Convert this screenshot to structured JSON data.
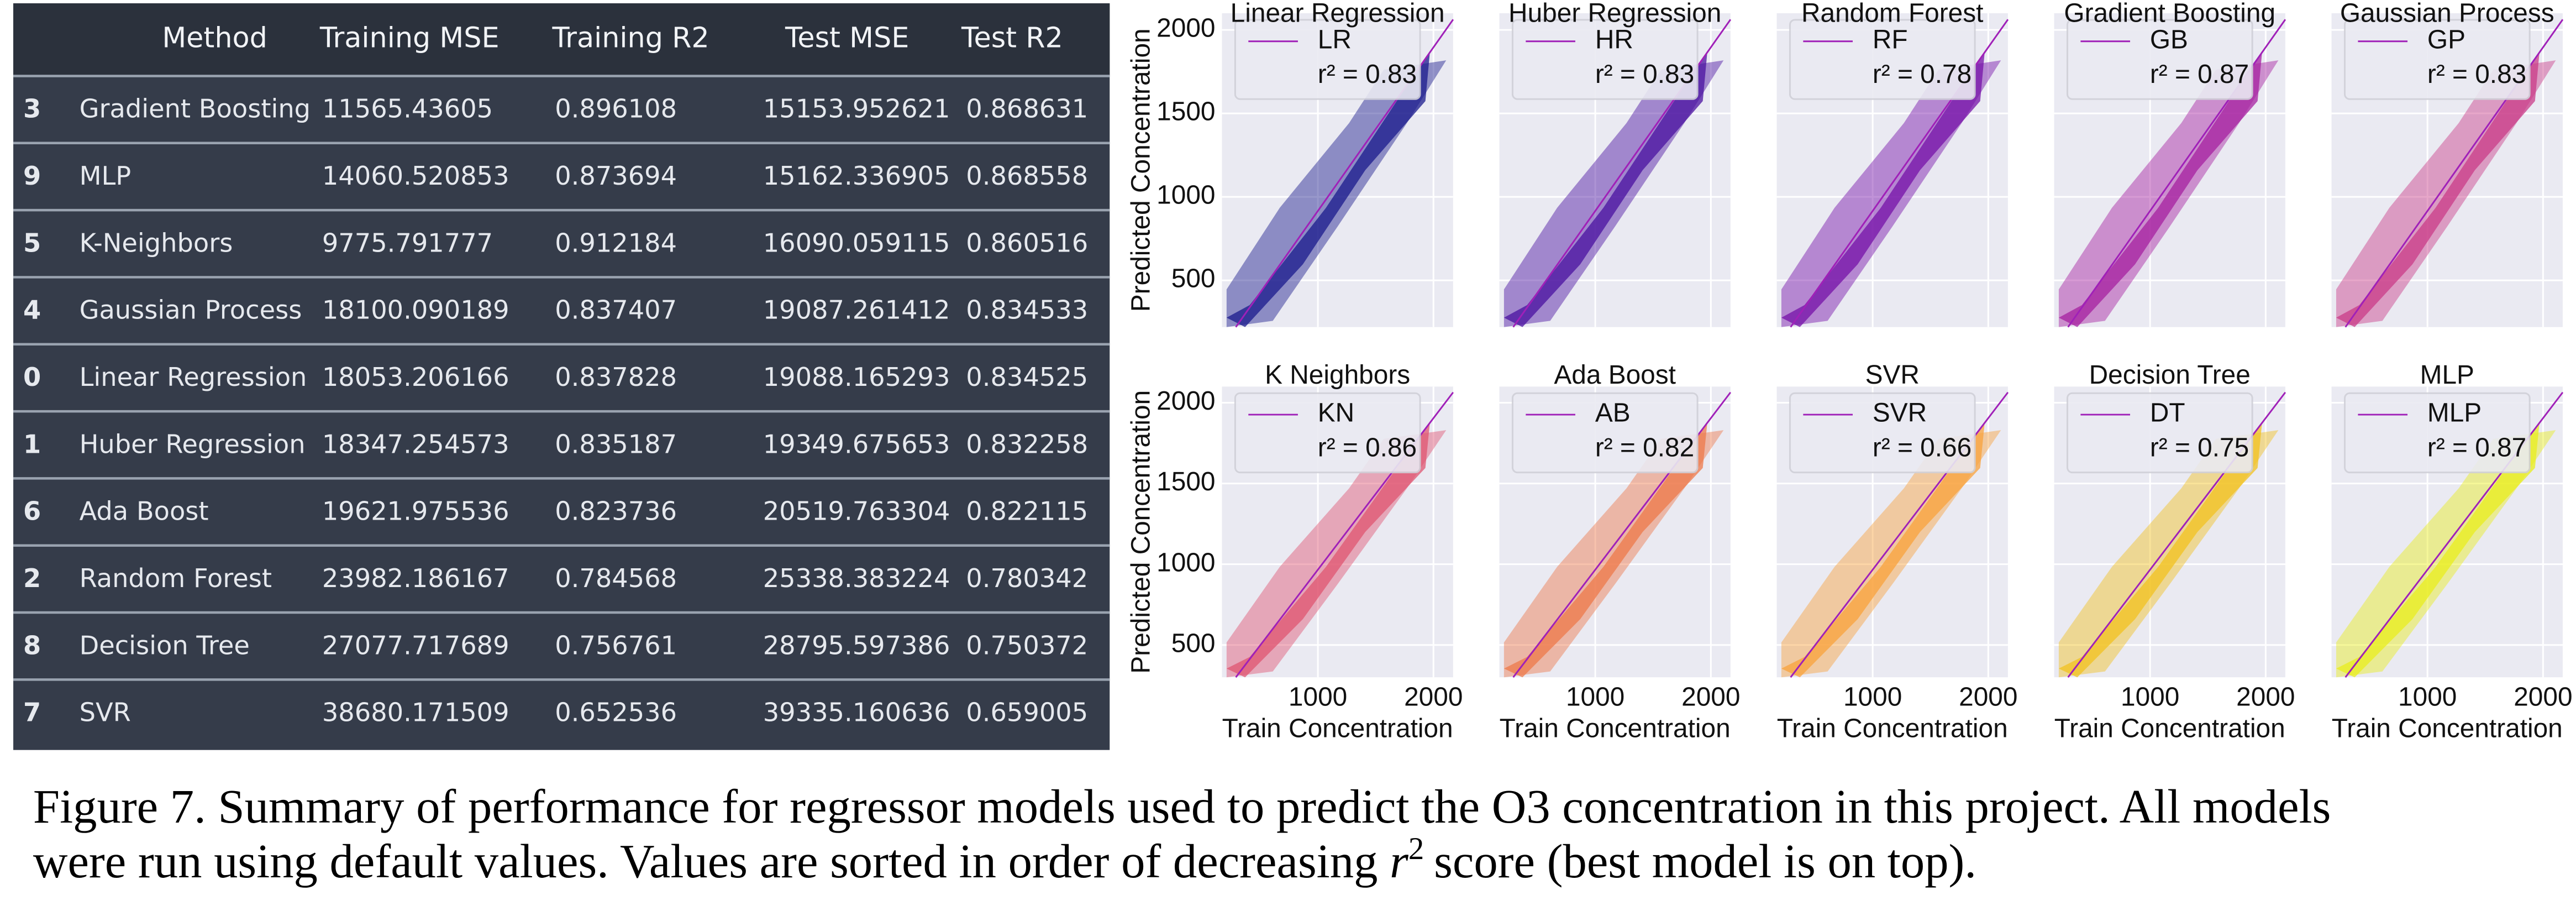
{
  "table": {
    "columns": [
      "Method",
      "Training MSE",
      "Training R2",
      "Test MSE",
      "Test R2"
    ],
    "rows": [
      [
        "3",
        "Gradient Boosting",
        "11565.43605",
        "0.896108",
        "15153.952621",
        "0.868631"
      ],
      [
        "9",
        "MLP",
        "14060.520853",
        "0.873694",
        "15162.336905",
        "0.868558"
      ],
      [
        "5",
        "K-Neighbors",
        "9775.791777",
        "0.912184",
        "16090.059115",
        "0.860516"
      ],
      [
        "4",
        "Gaussian Process",
        "18100.090189",
        "0.837407",
        "19087.261412",
        "0.834533"
      ],
      [
        "0",
        "Linear Regression",
        "18053.206166",
        "0.837828",
        "19088.165293",
        "0.834525"
      ],
      [
        "1",
        "Huber Regression",
        "18347.254573",
        "0.835187",
        "19349.675653",
        "0.832258"
      ],
      [
        "6",
        "Ada Boost",
        "19621.975536",
        "0.823736",
        "20519.763304",
        "0.822115"
      ],
      [
        "2",
        "Random Forest",
        "23982.186167",
        "0.784568",
        "25338.383224",
        "0.780342"
      ],
      [
        "8",
        "Decision Tree",
        "27077.717689",
        "0.756761",
        "28795.597386",
        "0.750372"
      ],
      [
        "7",
        "SVR",
        "38680.171509",
        "0.652536",
        "39335.160636",
        "0.659005"
      ]
    ]
  },
  "chart_data": [
    {
      "type": "scatter",
      "title": "Linear Regression",
      "legend": "LR",
      "annotation": "r² = 0.83",
      "color": "#1a1a8c",
      "y_label": "Predicted Concentration",
      "xlim": [
        170,
        2170
      ],
      "ylim": [
        220,
        2100
      ],
      "xticks": [
        1000,
        2000
      ],
      "yticks": [
        500,
        1000,
        1500,
        2000
      ]
    },
    {
      "type": "scatter",
      "title": "Huber Regression",
      "legend": "HR",
      "annotation": "r² = 0.83",
      "color": "#4a10a0",
      "xlim": [
        170,
        2170
      ],
      "ylim": [
        220,
        2100
      ],
      "xticks": [
        1000,
        2000
      ],
      "yticks": [
        500,
        1000,
        1500,
        2000
      ]
    },
    {
      "type": "scatter",
      "title": "Random Forest",
      "legend": "RF",
      "annotation": "r² = 0.78",
      "color": "#7510a8",
      "xlim": [
        170,
        2170
      ],
      "ylim": [
        220,
        2100
      ],
      "xticks": [
        1000,
        2000
      ],
      "yticks": [
        500,
        1000,
        1500,
        2000
      ]
    },
    {
      "type": "scatter",
      "title": "Gradient Boosting",
      "legend": "GB",
      "annotation": "r² = 0.87",
      "color": "#a61fa0",
      "xlim": [
        170,
        2170
      ],
      "ylim": [
        220,
        2100
      ],
      "xticks": [
        1000,
        2000
      ],
      "yticks": [
        500,
        1000,
        1500,
        2000
      ]
    },
    {
      "type": "scatter",
      "title": "Gaussian Process",
      "legend": "GP",
      "annotation": "r² = 0.83",
      "color": "#c93b88",
      "xlim": [
        170,
        2170
      ],
      "ylim": [
        220,
        2100
      ],
      "xticks": [
        1000,
        2000
      ],
      "yticks": [
        500,
        1000,
        1500,
        2000
      ]
    },
    {
      "type": "scatter",
      "title": "K Neighbors",
      "legend": "KN",
      "annotation": "r² = 0.86",
      "color": "#df5570",
      "x_label": "Train Concentration",
      "y_label": "Predicted Concentration",
      "xlim": [
        170,
        2170
      ],
      "ylim": [
        300,
        2100
      ],
      "xticks": [
        1000,
        2000
      ],
      "yticks": [
        500,
        1000,
        1500,
        2000
      ]
    },
    {
      "type": "scatter",
      "title": "Ada Boost",
      "legend": "AB",
      "annotation": "r² = 0.82",
      "color": "#ee7849",
      "x_label": "Train Concentration",
      "xlim": [
        170,
        2170
      ],
      "ylim": [
        300,
        2100
      ],
      "xticks": [
        1000,
        2000
      ],
      "yticks": [
        500,
        1000,
        1500,
        2000
      ]
    },
    {
      "type": "scatter",
      "title": "SVR",
      "legend": "SVR",
      "annotation": "r² = 0.66",
      "color": "#f9a23b",
      "x_label": "Train Concentration",
      "xlim": [
        170,
        2170
      ],
      "ylim": [
        300,
        2100
      ],
      "xticks": [
        1000,
        2000
      ],
      "yticks": [
        500,
        1000,
        1500,
        2000
      ]
    },
    {
      "type": "scatter",
      "title": "Decision Tree",
      "legend": "DT",
      "annotation": "r² = 0.75",
      "color": "#f2c21f",
      "x_label": "Train Concentration",
      "xlim": [
        170,
        2170
      ],
      "ylim": [
        300,
        2100
      ],
      "xticks": [
        1000,
        2000
      ],
      "yticks": [
        500,
        1000,
        1500,
        2000
      ]
    },
    {
      "type": "scatter",
      "title": "MLP",
      "legend": "MLP",
      "annotation": "r² = 0.87",
      "color": "#e8ee1c",
      "x_label": "Train Concentration",
      "xlim": [
        170,
        2170
      ],
      "ylim": [
        300,
        2100
      ],
      "xticks": [
        1000,
        2000
      ],
      "yticks": [
        500,
        1000,
        1500,
        2000
      ]
    }
  ],
  "caption": [
    "Figure 7. Summary of performance for regressor models used  to predict the O3 concentration in this project. All models",
    "were run using default values.  Values are sorted in order of decreasing",
    "r",
    "2",
    "score (best model is on top)."
  ]
}
